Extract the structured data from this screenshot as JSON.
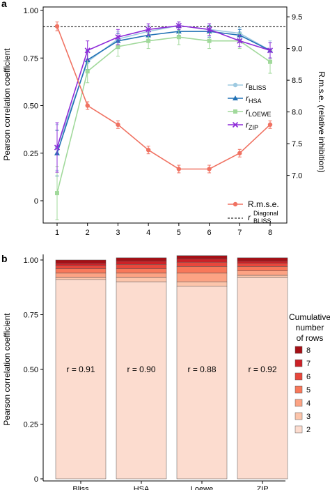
{
  "colors": {
    "bliss": "#9ecae1",
    "hsa": "#2171b5",
    "loewe": "#a1d99b",
    "zip": "#8e2bd8",
    "rmse": "#f07262",
    "diagonal": "#000000",
    "stack": [
      "#fcdccf",
      "#fcc5ab",
      "#fca384",
      "#f8785a",
      "#e8473c",
      "#cc2127",
      "#a50f15"
    ]
  },
  "chart_data": [
    {
      "type": "line",
      "panel_label": "a",
      "xlabel": "",
      "ylabel": "Pearson correlation coefficient",
      "y2label": "R.m.s.e. (relative inhibition)",
      "x": [
        1,
        2,
        3,
        4,
        5,
        6,
        7,
        8
      ],
      "xticks": [
        "1",
        "2",
        "3",
        "4",
        "5",
        "6",
        "7",
        "8"
      ],
      "ylim": [
        0,
        1
      ],
      "yticks": [
        "0",
        "0.25",
        "0.50",
        "0.75",
        "1.00"
      ],
      "y2lim": [
        6.6,
        9.6
      ],
      "y2ticks": [
        "7.0",
        "7.5",
        "8.0",
        "8.5",
        "9.0",
        "9.5"
      ],
      "series": [
        {
          "key": "bliss",
          "name": "BLISS",
          "axis": "left",
          "marker": "circle",
          "values": [
            0.28,
            0.73,
            0.85,
            0.89,
            0.92,
            0.9,
            0.88,
            0.79
          ],
          "err": [
            0.12,
            0.05,
            0.04,
            0.03,
            0.02,
            0.03,
            0.03,
            0.05
          ]
        },
        {
          "key": "hsa",
          "name": "HSA",
          "axis": "left",
          "marker": "triangle",
          "values": [
            0.25,
            0.74,
            0.84,
            0.87,
            0.89,
            0.89,
            0.87,
            0.79
          ],
          "err": [
            0.12,
            0.05,
            0.04,
            0.03,
            0.02,
            0.03,
            0.03,
            0.04
          ]
        },
        {
          "key": "loewe",
          "name": "LOEWE",
          "axis": "left",
          "marker": "square",
          "values": [
            0.04,
            0.68,
            0.81,
            0.84,
            0.86,
            0.84,
            0.84,
            0.73
          ],
          "err": [
            0.14,
            0.06,
            0.05,
            0.04,
            0.04,
            0.04,
            0.04,
            0.06
          ]
        },
        {
          "key": "zip",
          "name": "ZIP",
          "axis": "left",
          "marker": "x",
          "values": [
            0.28,
            0.79,
            0.86,
            0.9,
            0.92,
            0.9,
            0.84,
            0.79
          ],
          "err": [
            0.13,
            0.05,
            0.04,
            0.03,
            0.02,
            0.03,
            0.03,
            0.04
          ]
        },
        {
          "key": "rmse",
          "name": "R.m.s.e.",
          "axis": "right",
          "marker": "circle",
          "values": [
            9.35,
            8.1,
            7.8,
            7.4,
            7.1,
            7.1,
            7.35,
            7.8
          ],
          "err": [
            0.07,
            0.06,
            0.06,
            0.06,
            0.06,
            0.06,
            0.06,
            0.06
          ]
        }
      ],
      "reference_line": {
        "value": 0.915,
        "label": "Diagonal",
        "label_sub": "BLISS",
        "axis": "left"
      },
      "legend": [
        {
          "key": "bliss",
          "sym": "r",
          "sub": "BLISS"
        },
        {
          "key": "hsa",
          "sym": "r",
          "sub": "HSA"
        },
        {
          "key": "loewe",
          "sym": "r",
          "sub": "LOEWE"
        },
        {
          "key": "zip",
          "sym": "r",
          "sub": "ZIP"
        }
      ],
      "legend_bottom": [
        {
          "key": "rmse",
          "text": "R.m.s.e."
        },
        {
          "key": "diagonal",
          "sym": "r",
          "sup": "Diagonal",
          "sub": "BLISS"
        }
      ]
    },
    {
      "type": "bar",
      "stacked": true,
      "panel_label": "b",
      "xlabel": "",
      "ylabel": "Pearson correlation coefficient",
      "categories": [
        "Bliss",
        "HSA",
        "Loewe",
        "ZIP"
      ],
      "ylim": [
        0,
        1
      ],
      "yticks": [
        "0",
        "0.25",
        "0.50",
        "0.75",
        "1.00"
      ],
      "annotations": [
        "r = 0.91",
        "r = 0.90",
        "r = 0.88",
        "r = 0.92"
      ],
      "series": [
        {
          "name": "2",
          "values": [
            0.91,
            0.9,
            0.88,
            0.92
          ]
        },
        {
          "name": "3",
          "values": [
            0.01,
            0.02,
            0.02,
            0.01
          ]
        },
        {
          "name": "4",
          "values": [
            0.02,
            0.02,
            0.04,
            0.02
          ]
        },
        {
          "name": "5",
          "values": [
            0.02,
            0.02,
            0.03,
            0.02
          ]
        },
        {
          "name": "6",
          "values": [
            0.015,
            0.02,
            0.02,
            0.015
          ]
        },
        {
          "name": "7",
          "values": [
            0.01,
            0.015,
            0.015,
            0.01
          ]
        },
        {
          "name": "8",
          "values": [
            0.015,
            0.015,
            0.015,
            0.015
          ]
        }
      ],
      "legend_title": [
        "Cumulative",
        "number",
        "of rows"
      ],
      "legend_order": [
        "8",
        "7",
        "6",
        "5",
        "4",
        "3",
        "2"
      ]
    }
  ]
}
